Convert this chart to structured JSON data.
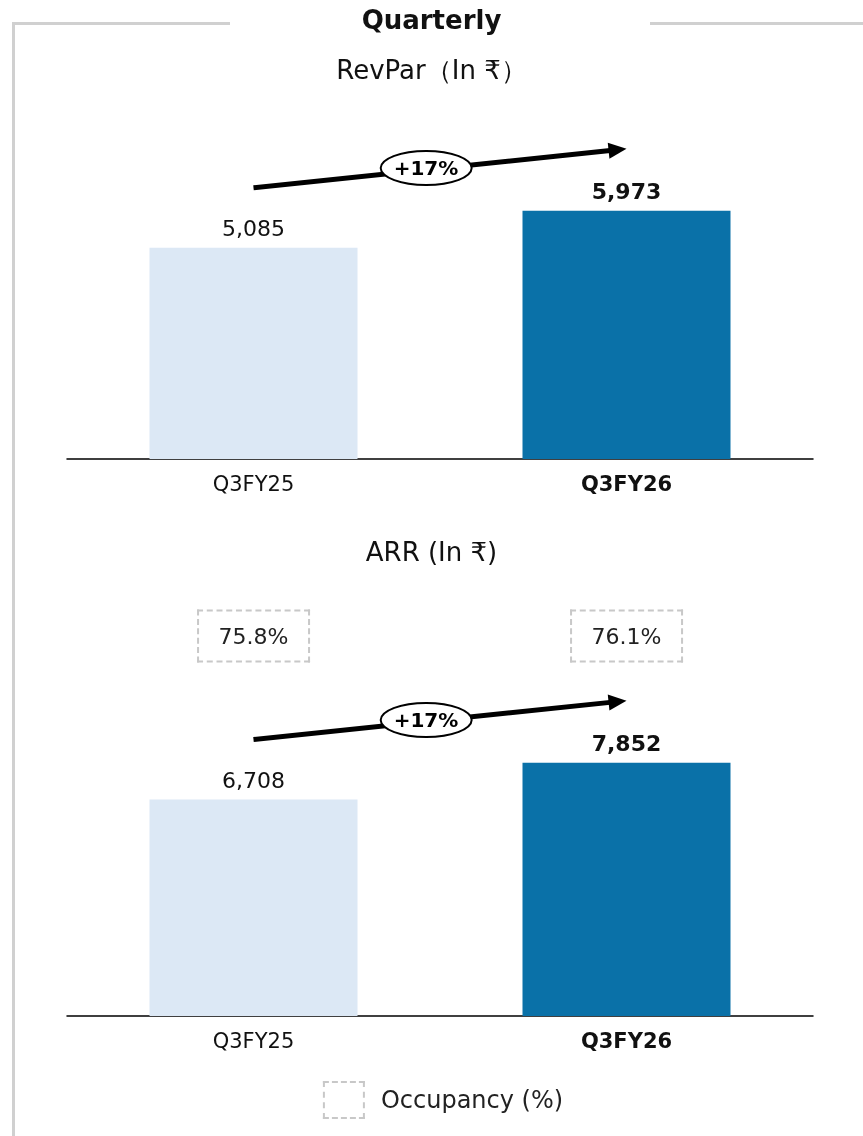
{
  "chart_data": [
    {
      "type": "bar",
      "title": "Quarterly",
      "subtitle": "RevPar（In ₹）",
      "categories": [
        "Q3FY25",
        "Q3FY26"
      ],
      "values": [
        5085,
        5973
      ],
      "colors": [
        "#dce8f5",
        "#0a71a8"
      ],
      "value_labels": [
        "5,085",
        "5,973"
      ],
      "tick_labels": "x",
      "grid": false,
      "annotations": [
        "+17%"
      ]
    },
    {
      "type": "bar",
      "title": "ARR (In ₹)",
      "categories": [
        "Q3FY25",
        "Q3FY26"
      ],
      "values": [
        6708,
        7852
      ],
      "colors": [
        "#dce8f5",
        "#0a71a8"
      ],
      "value_labels": [
        "6,708",
        "7,852"
      ],
      "tick_labels": "x",
      "grid": false,
      "annotations": [
        "+17%",
        "75.8%",
        "76.1%",
        "Occupancy (%)"
      ]
    }
  ]
}
